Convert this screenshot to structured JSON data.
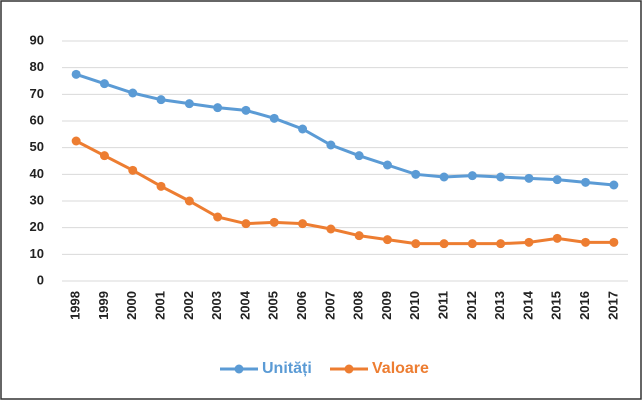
{
  "chart_data": {
    "type": "line",
    "categories": [
      "1998",
      "1999",
      "2000",
      "2001",
      "2002",
      "2003",
      "2004",
      "2005",
      "2006",
      "2007",
      "2008",
      "2009",
      "2010",
      "2011",
      "2012",
      "2013",
      "2014",
      "2015",
      "2016",
      "2017"
    ],
    "series": [
      {
        "name": "Unități",
        "color": "#5b9bd5",
        "values": [
          77.5,
          74,
          70.5,
          68,
          66.5,
          65,
          64,
          61,
          57,
          51,
          47,
          43.5,
          40,
          39,
          39.5,
          39,
          38.5,
          38,
          37,
          36
        ]
      },
      {
        "name": "Valoare",
        "color": "#ed7d31",
        "values": [
          52.5,
          47,
          41.5,
          35.5,
          30,
          24,
          21.5,
          22,
          21.5,
          19.5,
          17,
          15.5,
          14,
          14,
          14,
          14,
          14.5,
          16,
          14.5,
          14.5
        ]
      }
    ],
    "ylim": [
      0,
      90
    ],
    "yticks": [
      0,
      10,
      20,
      30,
      40,
      50,
      60,
      70,
      80,
      90
    ],
    "grid": true,
    "legend": "bottom"
  }
}
